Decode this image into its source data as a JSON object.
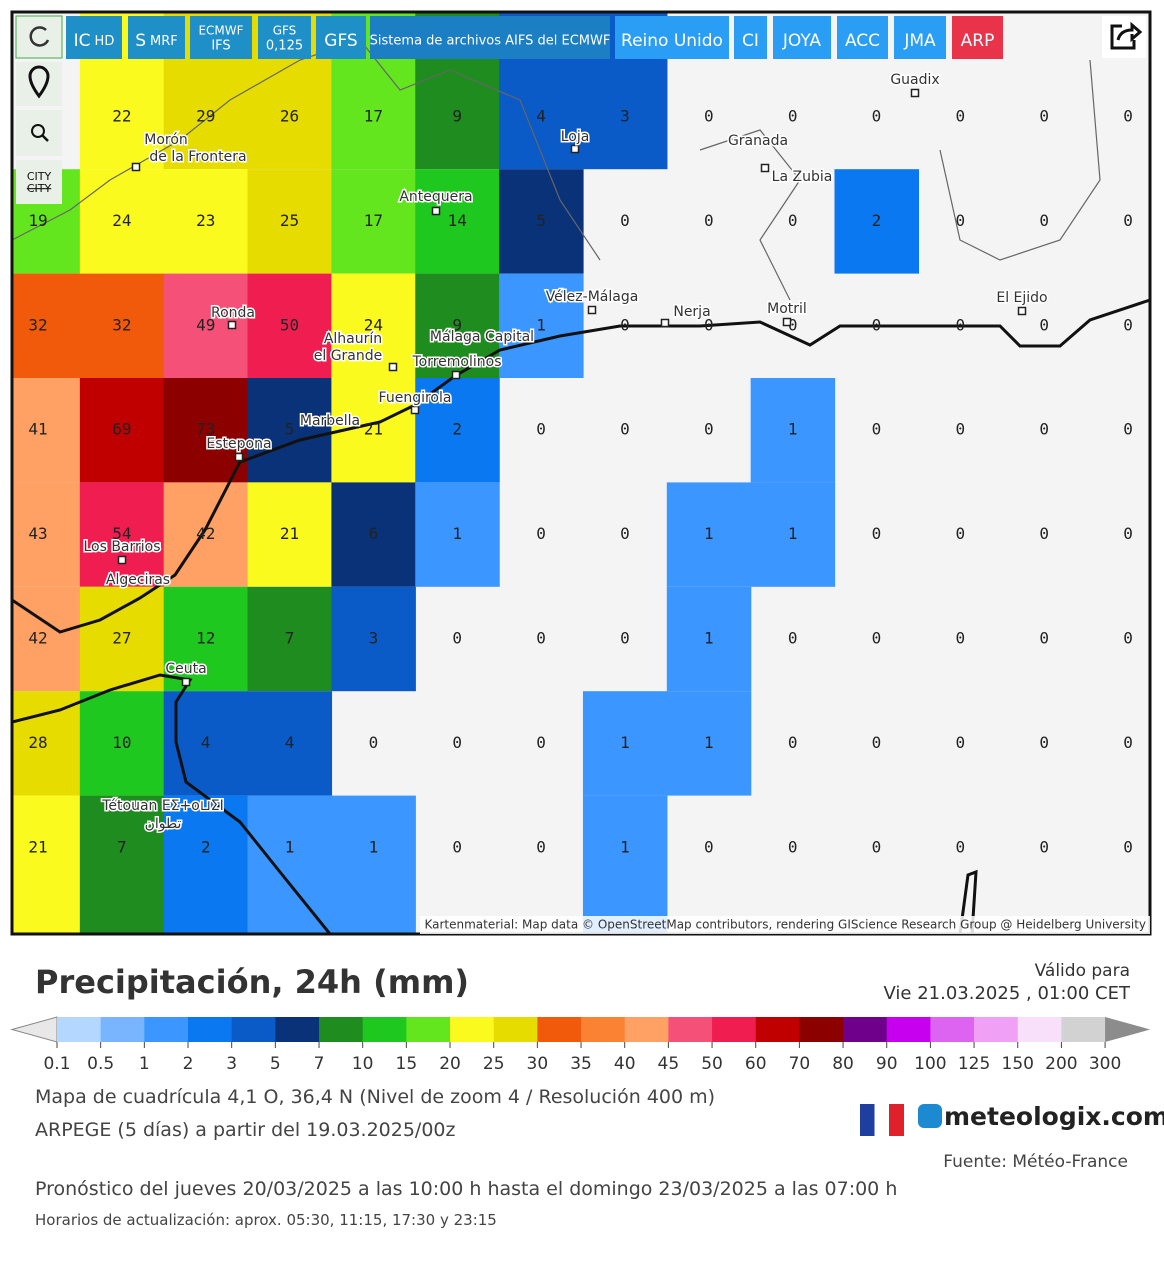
{
  "toolbar": {
    "buttons": [
      {
        "label": "IC",
        "sub": "HD"
      },
      {
        "label": "S",
        "sub": "MRF"
      },
      {
        "label": "ECMWF",
        "sub": "IFS"
      },
      {
        "label": "GFS",
        "sub": "0,125"
      },
      {
        "label": "GFS"
      },
      {
        "label": "Sistema de archivos AIFS del ECMWF"
      },
      {
        "label": "Reino Unido"
      },
      {
        "label": "CI"
      },
      {
        "label": "JOYA"
      },
      {
        "label": "ACC"
      },
      {
        "label": "JMA"
      },
      {
        "label": "ARP"
      }
    ],
    "city": "CITY"
  },
  "map": {
    "places": [
      {
        "lines": [
          "Morón",
          "de la Frontera"
        ]
      },
      {
        "lines": [
          "Antequera"
        ]
      },
      {
        "lines": [
          "Loja"
        ]
      },
      {
        "lines": [
          "Granada"
        ]
      },
      {
        "lines": [
          "La Zubia"
        ]
      },
      {
        "lines": [
          "Guadix"
        ]
      },
      {
        "lines": [
          "Vélez-Málaga"
        ]
      },
      {
        "lines": [
          "Nerja"
        ]
      },
      {
        "lines": [
          "Motril"
        ]
      },
      {
        "lines": [
          "El Ejido"
        ]
      },
      {
        "lines": [
          "Ronda"
        ]
      },
      {
        "lines": [
          "Alhaurín",
          "el Grande"
        ]
      },
      {
        "lines": [
          "Málaga Capital"
        ]
      },
      {
        "lines": [
          "Torremolinos"
        ]
      },
      {
        "lines": [
          "Fuengirola"
        ]
      },
      {
        "lines": [
          "Marbella"
        ]
      },
      {
        "lines": [
          "Estepona"
        ]
      },
      {
        "lines": [
          "Los Barrios"
        ]
      },
      {
        "lines": [
          "Algeciras"
        ]
      },
      {
        "lines": [
          "Ceuta"
        ]
      },
      {
        "lines": [
          "Tétouan ΕΣ+ο⊔ΣΙ",
          "تطوان"
        ]
      }
    ],
    "grid": [
      [
        null,
        22,
        29,
        26,
        17,
        9,
        4,
        3,
        0,
        0,
        0,
        0,
        0,
        0
      ],
      [
        19,
        24,
        23,
        25,
        17,
        14,
        5,
        0,
        0,
        0,
        2,
        0,
        0,
        0
      ],
      [
        32,
        32,
        49,
        50,
        24,
        9,
        1,
        0,
        0,
        0,
        0,
        0,
        0,
        0
      ],
      [
        41,
        69,
        73,
        5,
        21,
        2,
        0,
        0,
        0,
        1,
        0,
        0,
        0,
        0
      ],
      [
        43,
        54,
        42,
        21,
        6,
        1,
        0,
        0,
        1,
        1,
        0,
        0,
        0,
        0
      ],
      [
        42,
        27,
        12,
        7,
        3,
        0,
        0,
        0,
        1,
        0,
        0,
        0,
        0,
        0
      ],
      [
        28,
        10,
        4,
        4,
        0,
        0,
        0,
        1,
        1,
        0,
        0,
        0,
        0,
        0
      ],
      [
        21,
        7,
        2,
        1,
        1,
        0,
        0,
        1,
        0,
        0,
        0,
        0,
        0,
        0
      ]
    ],
    "attribution": "Kartenmaterial: Map data © OpenStreetMap contributors, rendering GIScience Research Group @ Heidelberg University"
  },
  "legend": {
    "title": "Precipitación, 24h (mm)",
    "valid_label": "Válido para",
    "valid_time": "Vie 21.03.2025 , 01:00 CET",
    "ticks": [
      0.1,
      0.5,
      1,
      2,
      3,
      5,
      7,
      10,
      15,
      20,
      25,
      30,
      35,
      40,
      45,
      50,
      60,
      70,
      80,
      90,
      100,
      125,
      150,
      200,
      300
    ],
    "colors": [
      "#b4d7ff",
      "#78b4ff",
      "#3c96ff",
      "#0a78f0",
      "#0a5ac8",
      "#0a3278",
      "#1e8c1e",
      "#1ec81e",
      "#64e61e",
      "#fafa1e",
      "#e6dc00",
      "#f05a0a",
      "#fa8232",
      "#ffa064",
      "#f55078",
      "#f01e50",
      "#c00000",
      "#8c0000",
      "#6e008c",
      "#c800f0",
      "#dc64f0",
      "#f0a0f5",
      "#f8e0fa",
      "#d2d2d2"
    ]
  },
  "info": {
    "grid": "Mapa de cuadrícula 4,1 O, 36,4 N (Nivel de zoom 4 / Resolución 400 m)",
    "model": "ARPEGE (5 días) a partir del 19.03.2025/00z",
    "logo": "meteologix.com",
    "source": "Fuente: Météo-France",
    "forecast": "Pronóstico del jueves 20/03/2025 a las 10:00 h hasta el domingo 23/03/2025 a las 07:00 h",
    "updates": "Horarios de actualización: aprox. 05:30, 11:15, 17:30 y 23:15"
  }
}
